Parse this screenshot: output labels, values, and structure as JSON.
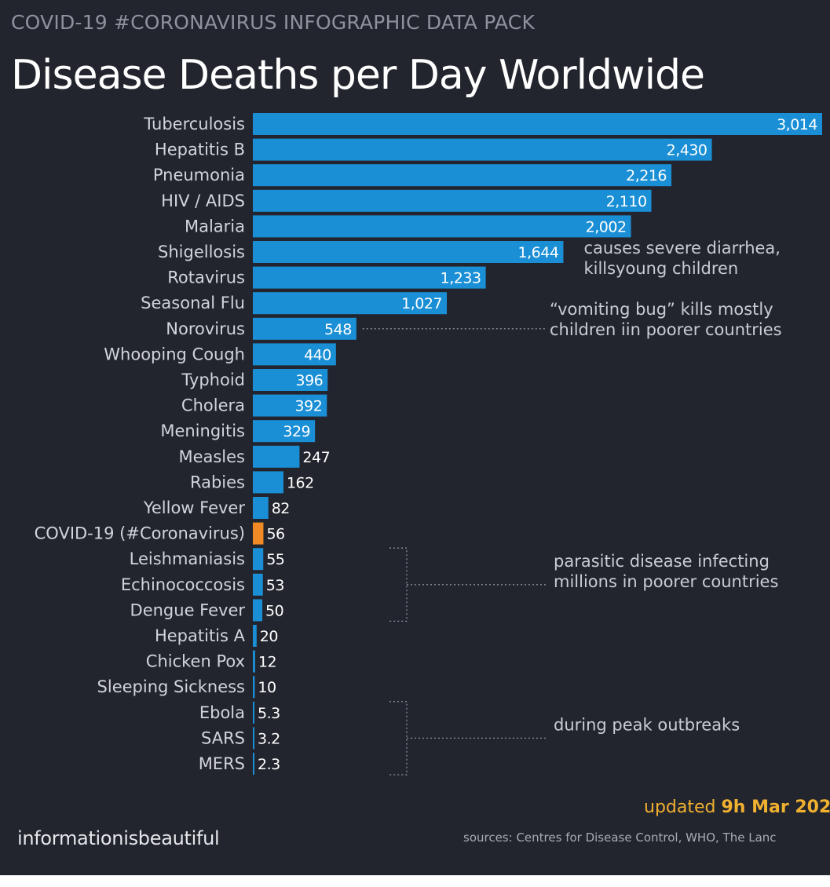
{
  "header": {
    "kicker": "COVID-19 #CORONAVIRUS INFOGRAPHIC DATA PACK",
    "title": "Disease Deaths per Day Worldwide"
  },
  "chart_data": {
    "type": "bar",
    "orientation": "horizontal",
    "title": "Disease Deaths per Day Worldwide",
    "categories": [
      "Tuberculosis",
      "Hepatitis B",
      "Pneumonia",
      "HIV / AIDS",
      "Malaria",
      "Shigellosis",
      "Rotavirus",
      "Seasonal Flu",
      "Norovirus",
      "Whooping Cough",
      "Typhoid",
      "Cholera",
      "Meningitis",
      "Measles",
      "Rabies",
      "Yellow Fever",
      "COVID-19 (#Coronavirus)",
      "Leishmaniasis",
      "Echinococcosis",
      "Dengue Fever",
      "Hepatitis A",
      "Chicken Pox",
      "Sleeping Sickness",
      "Ebola",
      "SARS",
      "MERS"
    ],
    "values": [
      3014,
      2430,
      2216,
      2110,
      2002,
      1644,
      1233,
      1027,
      548,
      440,
      396,
      392,
      329,
      247,
      162,
      82,
      56,
      55,
      53,
      50,
      20,
      12,
      10,
      5.3,
      3.2,
      2.3
    ],
    "value_labels": [
      "3,014",
      "2,430",
      "2,216",
      "2,110",
      "2,002",
      "1,644",
      "1,233",
      "1,027",
      "548",
      "440",
      "396",
      "392",
      "329",
      "247",
      "162",
      "82",
      "56",
      "55",
      "53",
      "50",
      "20",
      "12",
      "10",
      "5.3",
      "3.2",
      "2.3"
    ],
    "highlight": "COVID-19 (#Coronavirus)",
    "colors": {
      "bar": "#1a8fd6",
      "highlight": "#f08a24",
      "background": "#23252e"
    },
    "annotations": [
      {
        "lines": [
          "causes severe diarrhea,",
          "killsyoung children"
        ],
        "target": "Shigellosis"
      },
      {
        "lines": [
          "“vomiting bug” kills mostly",
          "children iin poorer countries"
        ],
        "target": "Norovirus"
      },
      {
        "lines": [
          "parasitic disease infecting",
          "millions in poorer countries"
        ],
        "target": [
          "Leishmaniasis",
          "Echinococcosis",
          "Dengue Fever"
        ]
      },
      {
        "lines": [
          "during peak outbreaks"
        ],
        "target": [
          "Ebola",
          "SARS",
          "MERS"
        ]
      }
    ],
    "grid": false
  },
  "footer": {
    "updated_prefix": "updated ",
    "updated_date": "9h Mar 202",
    "brand": "informationisbeautiful",
    "sources": "sources: Centres for Disease Control, WHO, The Lanc"
  }
}
